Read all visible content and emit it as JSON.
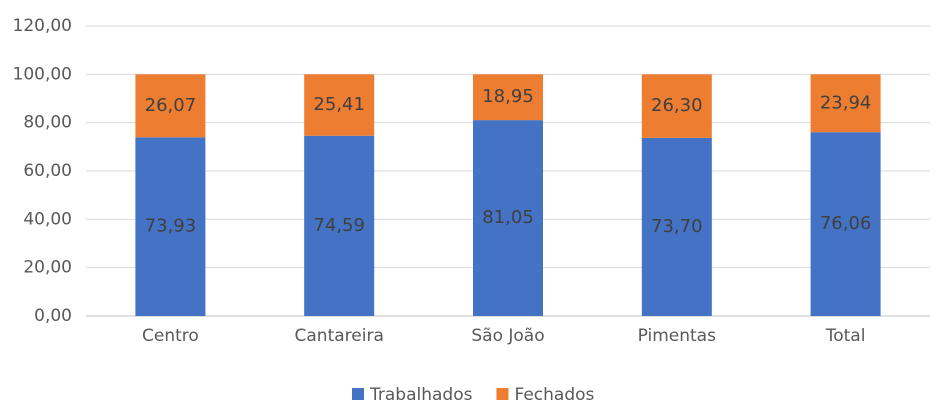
{
  "chart_data": {
    "type": "stacked_bar",
    "categories": [
      "Centro",
      "Cantareira",
      "São João",
      "Pimentas",
      "Total"
    ],
    "series": [
      {
        "name": "Trabalhados",
        "color": "#4472c4",
        "values": [
          73.93,
          74.59,
          81.05,
          73.7,
          76.06
        ],
        "value_labels": [
          "73,93",
          "74,59",
          "81,05",
          "73,70",
          "76,06"
        ]
      },
      {
        "name": "Fechados",
        "color": "#ed7d31",
        "values": [
          26.07,
          25.41,
          18.95,
          26.3,
          23.94
        ],
        "value_labels": [
          "26,07",
          "25,41",
          "18,95",
          "26,30",
          "23,94"
        ]
      }
    ],
    "ylim": [
      0,
      120
    ],
    "yticks": [
      {
        "value": 0,
        "label": "0,00"
      },
      {
        "value": 20,
        "label": "20,00"
      },
      {
        "value": 40,
        "label": "40,00"
      },
      {
        "value": 60,
        "label": "60,00"
      },
      {
        "value": 80,
        "label": "80,00"
      },
      {
        "value": 100,
        "label": "100,00"
      },
      {
        "value": 120,
        "label": "120,00"
      }
    ],
    "grid": true,
    "legend": "bottom"
  }
}
